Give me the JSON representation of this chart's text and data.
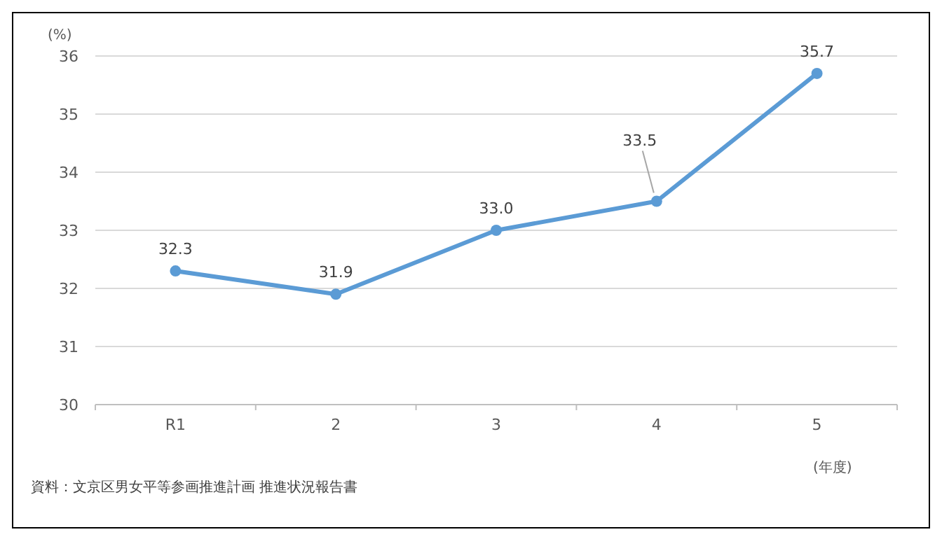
{
  "chart_data": {
    "type": "line",
    "ylabel": "(%)",
    "xlabel": "(年度)",
    "categories": [
      "R1",
      "2",
      "3",
      "4",
      "5"
    ],
    "series": [
      {
        "color": "#5b9bd5",
        "values": [
          32.3,
          31.9,
          33.0,
          33.5,
          35.7
        ]
      }
    ],
    "value_labels": [
      "32.3",
      "31.9",
      "33.0",
      "33.5",
      "35.7"
    ],
    "ylim": [
      30,
      36
    ],
    "yticks": [
      30,
      31,
      32,
      33,
      34,
      35,
      36
    ],
    "grid": "y",
    "marker": "circle",
    "line_style": "solid",
    "annotations": [
      "資料：文京区男女平等参画推進計画 推進状況報告書"
    ]
  }
}
